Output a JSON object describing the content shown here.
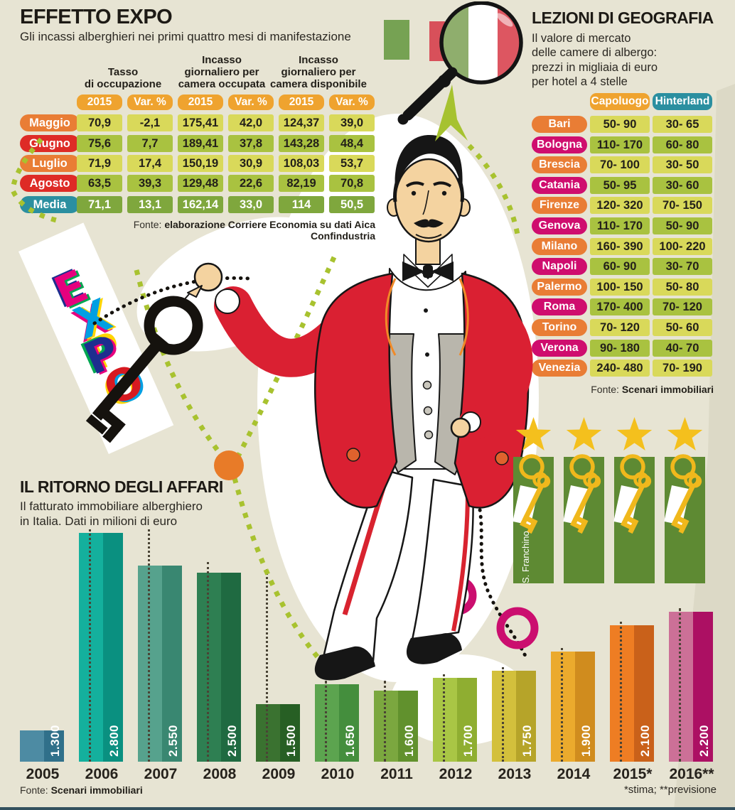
{
  "chart_data": [
    {
      "type": "table",
      "title": "EFFETTO EXPO",
      "subtitle": "Gli incassi alberghieri nei primi quattro mesi di manifestazione",
      "col_groups": [
        "Tasso\ndi occupazione",
        "Incasso\ngiornaliero per\ncamera occupata",
        "Incasso\ngiornaliero per\ncamera disponibile"
      ],
      "sub_headers": [
        "2015",
        "Var. %",
        "2015",
        "Var. %",
        "2015",
        "Var. %"
      ],
      "sub_header_color": "#efa32f",
      "rows": [
        {
          "label": "Maggio",
          "label_color": "#e97d35",
          "tone": "light",
          "values": [
            "70,9",
            "-2,1",
            "175,41",
            "42,0",
            "124,37",
            "39,0"
          ]
        },
        {
          "label": "Giugno",
          "label_color": "#de2b26",
          "tone": "mid",
          "values": [
            "75,6",
            "7,7",
            "189,41",
            "37,8",
            "143,28",
            "48,4"
          ]
        },
        {
          "label": "Luglio",
          "label_color": "#e97d35",
          "tone": "light",
          "values": [
            "71,9",
            "17,4",
            "150,19",
            "30,9",
            "108,03",
            "53,7"
          ]
        },
        {
          "label": "Agosto",
          "label_color": "#de2b26",
          "tone": "mid",
          "values": [
            "63,5",
            "39,3",
            "129,48",
            "22,6",
            "82,19",
            "70,8"
          ]
        },
        {
          "label": "Media",
          "label_color": "#2b8fa0",
          "tone": "dark",
          "values": [
            "71,1",
            "13,1",
            "162,14",
            "33,0",
            "114",
            "50,5"
          ]
        }
      ],
      "source_prefix": "Fonte: ",
      "source": "elaborazione Corriere Economia su dati Aica Confindustria"
    },
    {
      "type": "table",
      "title": "LEZIONI DI GEOGRAFIA",
      "subtitle": "Il valore di mercato\ndelle camere di albergo:\nprezzi in migliaia di euro\nper hotel a 4 stelle",
      "columns": [
        {
          "label": "Capoluogo",
          "color": "#efa32f"
        },
        {
          "label": "Hinterland",
          "color": "#2b8fa0"
        }
      ],
      "rows": [
        {
          "city": "Bari",
          "color": "#e97d35",
          "tone": "light",
          "values": [
            "50- 90",
            "30- 65"
          ]
        },
        {
          "city": "Bologna",
          "color": "#cf0d6e",
          "tone": "mid",
          "values": [
            "110- 170",
            "60- 80"
          ]
        },
        {
          "city": "Brescia",
          "color": "#e97d35",
          "tone": "light",
          "values": [
            "70- 100",
            "30- 50"
          ]
        },
        {
          "city": "Catania",
          "color": "#cf0d6e",
          "tone": "mid",
          "values": [
            "50- 95",
            "30- 60"
          ]
        },
        {
          "city": "Firenze",
          "color": "#e97d35",
          "tone": "light",
          "values": [
            "120- 320",
            "70- 150"
          ]
        },
        {
          "city": "Genova",
          "color": "#cf0d6e",
          "tone": "mid",
          "values": [
            "110- 170",
            "50- 90"
          ]
        },
        {
          "city": "Milano",
          "color": "#e97d35",
          "tone": "light",
          "values": [
            "160- 390",
            "100- 220"
          ]
        },
        {
          "city": "Napoli",
          "color": "#cf0d6e",
          "tone": "mid",
          "values": [
            "60- 90",
            "30- 70"
          ]
        },
        {
          "city": "Palermo",
          "color": "#e97d35",
          "tone": "light",
          "values": [
            "100- 150",
            "50- 80"
          ]
        },
        {
          "city": "Roma",
          "color": "#cf0d6e",
          "tone": "mid",
          "values": [
            "170- 400",
            "70- 120"
          ]
        },
        {
          "city": "Torino",
          "color": "#e97d35",
          "tone": "light",
          "values": [
            "70- 120",
            "50- 60"
          ]
        },
        {
          "city": "Verona",
          "color": "#cf0d6e",
          "tone": "mid",
          "values": [
            "90- 180",
            "40- 70"
          ]
        },
        {
          "city": "Venezia",
          "color": "#e97d35",
          "tone": "light",
          "values": [
            "240- 480",
            "70- 190"
          ]
        }
      ],
      "source_prefix": "Fonte: ",
      "source": "Scenari immobiliari"
    },
    {
      "type": "bar",
      "title": "IL RITORNO DEGLI AFFARI",
      "subtitle": "Il fatturato immobiliare alberghiero\nin Italia. Dati in milioni di euro",
      "categories": [
        "2005",
        "2006",
        "2007",
        "2008",
        "2009",
        "2010",
        "2011",
        "2012",
        "2013",
        "2014",
        "2015*",
        "2016**"
      ],
      "values": [
        1300,
        2800,
        2550,
        2500,
        1500,
        1650,
        1600,
        1700,
        1750,
        1900,
        2100,
        2200
      ],
      "value_labels": [
        "1.300",
        "2.800",
        "2.550",
        "2.500",
        "1.500",
        "1.650",
        "1.600",
        "1.700",
        "1.750",
        "1.900",
        "2.100",
        "2.200"
      ],
      "colors_light": [
        "#4d8ba3",
        "#14b09d",
        "#56a28d",
        "#2e7f52",
        "#3a7230",
        "#5ca44f",
        "#7ba73f",
        "#a9c645",
        "#d3c03c",
        "#ebaa2d",
        "#ee7d23",
        "#cc7097"
      ],
      "colors_dark": [
        "#30708a",
        "#0a9080",
        "#398771",
        "#1f6a41",
        "#275f24",
        "#448e3d",
        "#61912d",
        "#8fae31",
        "#b6a429",
        "#d08c1e",
        "#c9611a",
        "#ac1063"
      ],
      "ylim": [
        1060,
        2800
      ],
      "grid": false,
      "legend": "none",
      "source_prefix": "Fonte: ",
      "source": "Scenari immobiliari",
      "footnote": "*stima; **previsione"
    }
  ],
  "stars": {
    "signature": "S. Franchino",
    "star_color": "#f4c01d",
    "banner_color": "#5e8a33",
    "key_color": "#f0b81c"
  },
  "expo": {
    "letters": [
      "E",
      "X",
      "P",
      "O"
    ]
  },
  "colors": {
    "background": "#e7e4d3",
    "green_dash": "#a8c22f",
    "orange_dot": "#e87b28",
    "magenta_ring": "#cb0e6f"
  }
}
